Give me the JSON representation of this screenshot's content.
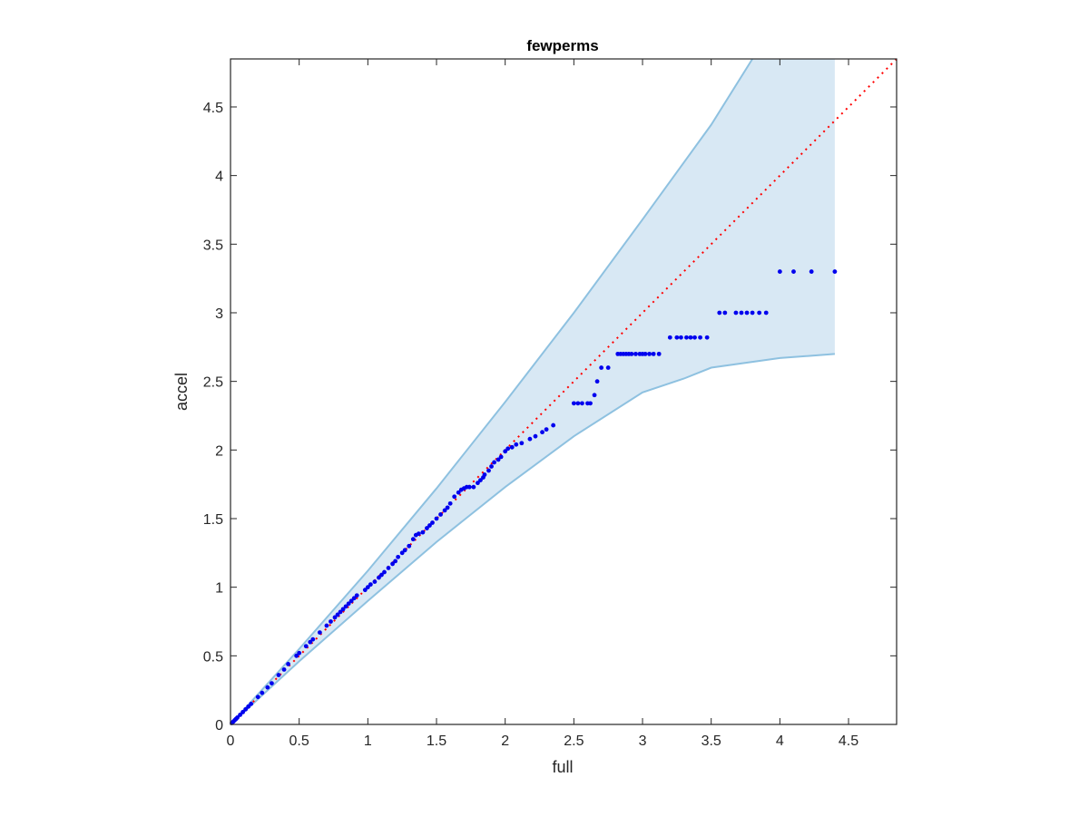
{
  "chart_data": {
    "type": "scatter",
    "title": "fewperms",
    "xlabel": "full",
    "ylabel": "accel",
    "xlim": [
      0,
      4.85
    ],
    "ylim": [
      0,
      4.85
    ],
    "xticks": [
      "0",
      "0.5",
      "1",
      "1.5",
      "2",
      "2.5",
      "3",
      "3.5",
      "4",
      "4.5"
    ],
    "yticks": [
      "0",
      "0.5",
      "1",
      "1.5",
      "2",
      "2.5",
      "3",
      "3.5",
      "4",
      "4.5"
    ],
    "grid": false,
    "colors": {
      "points": "#0000ee",
      "diagonal": "#ff0000",
      "band_fill": "#d8e8f4",
      "band_edge": "#8ec1e0",
      "axes": "#262626"
    },
    "reference_line": {
      "style": "dotted",
      "from": [
        0,
        0
      ],
      "to": [
        4.85,
        4.85
      ]
    },
    "band": {
      "upper": [
        [
          0,
          0
        ],
        [
          0.5,
          0.55
        ],
        [
          1,
          1.12
        ],
        [
          1.5,
          1.72
        ],
        [
          2,
          2.35
        ],
        [
          2.5,
          3.0
        ],
        [
          3,
          3.68
        ],
        [
          3.5,
          4.37
        ],
        [
          3.8,
          4.85
        ],
        [
          4.4,
          4.85
        ]
      ],
      "lower": [
        [
          0,
          0
        ],
        [
          0.5,
          0.46
        ],
        [
          1,
          0.9
        ],
        [
          1.5,
          1.33
        ],
        [
          2,
          1.73
        ],
        [
          2.5,
          2.1
        ],
        [
          3,
          2.42
        ],
        [
          3.3,
          2.52
        ],
        [
          3.5,
          2.6
        ],
        [
          4.0,
          2.67
        ],
        [
          4.4,
          2.7
        ]
      ]
    },
    "series": [
      {
        "x": [
          0.01,
          0.02,
          0.03,
          0.04,
          0.05,
          0.07,
          0.09,
          0.11,
          0.13,
          0.15,
          0.2,
          0.23,
          0.27,
          0.3,
          0.35,
          0.39,
          0.42,
          0.48,
          0.5,
          0.55,
          0.58,
          0.6,
          0.65,
          0.7,
          0.73,
          0.76,
          0.78,
          0.8,
          0.82,
          0.84,
          0.86,
          0.88,
          0.9,
          0.92,
          0.98,
          1.0,
          1.02,
          1.05,
          1.08,
          1.1,
          1.12,
          1.15,
          1.18,
          1.2,
          1.22,
          1.25,
          1.27,
          1.3,
          1.33,
          1.35,
          1.37,
          1.4,
          1.43,
          1.45,
          1.47,
          1.5,
          1.53,
          1.56,
          1.58,
          1.6,
          1.63,
          1.66,
          1.68,
          1.7,
          1.72,
          1.74,
          1.77,
          1.8,
          1.82,
          1.84,
          1.85,
          1.88,
          1.9,
          1.92,
          1.95,
          1.97,
          2.0,
          2.02,
          2.05,
          2.08,
          2.12,
          2.18,
          2.22,
          2.27,
          2.3,
          2.35,
          2.5,
          2.53,
          2.56,
          2.6,
          2.62,
          2.65,
          2.67,
          2.7,
          2.75,
          2.82,
          2.84,
          2.86,
          2.88,
          2.9,
          2.92,
          2.95,
          2.98,
          3.0,
          3.02,
          3.05,
          3.08,
          3.12,
          3.2,
          3.25,
          3.28,
          3.32,
          3.35,
          3.38,
          3.42,
          3.47,
          3.56,
          3.6,
          3.68,
          3.72,
          3.76,
          3.8,
          3.85,
          3.9,
          4.0,
          4.1,
          4.23,
          4.4
        ],
        "y": [
          0.01,
          0.02,
          0.03,
          0.04,
          0.05,
          0.07,
          0.09,
          0.11,
          0.13,
          0.15,
          0.2,
          0.23,
          0.27,
          0.3,
          0.36,
          0.4,
          0.44,
          0.5,
          0.52,
          0.57,
          0.6,
          0.62,
          0.67,
          0.72,
          0.75,
          0.78,
          0.8,
          0.82,
          0.84,
          0.86,
          0.88,
          0.9,
          0.92,
          0.94,
          0.98,
          1.0,
          1.02,
          1.04,
          1.07,
          1.09,
          1.11,
          1.14,
          1.17,
          1.19,
          1.22,
          1.25,
          1.27,
          1.3,
          1.35,
          1.38,
          1.39,
          1.4,
          1.43,
          1.45,
          1.47,
          1.5,
          1.53,
          1.56,
          1.58,
          1.61,
          1.66,
          1.69,
          1.71,
          1.72,
          1.73,
          1.73,
          1.73,
          1.76,
          1.78,
          1.8,
          1.82,
          1.85,
          1.88,
          1.91,
          1.93,
          1.95,
          1.99,
          2.01,
          2.02,
          2.04,
          2.05,
          2.08,
          2.1,
          2.13,
          2.15,
          2.18,
          2.34,
          2.34,
          2.34,
          2.34,
          2.34,
          2.4,
          2.5,
          2.6,
          2.6,
          2.7,
          2.7,
          2.7,
          2.7,
          2.7,
          2.7,
          2.7,
          2.7,
          2.7,
          2.7,
          2.7,
          2.7,
          2.7,
          2.82,
          2.82,
          2.82,
          2.82,
          2.82,
          2.82,
          2.82,
          2.82,
          3.0,
          3.0,
          3.0,
          3.0,
          3.0,
          3.0,
          3.0,
          3.0,
          3.3,
          3.3,
          3.3,
          3.3
        ]
      }
    ]
  }
}
